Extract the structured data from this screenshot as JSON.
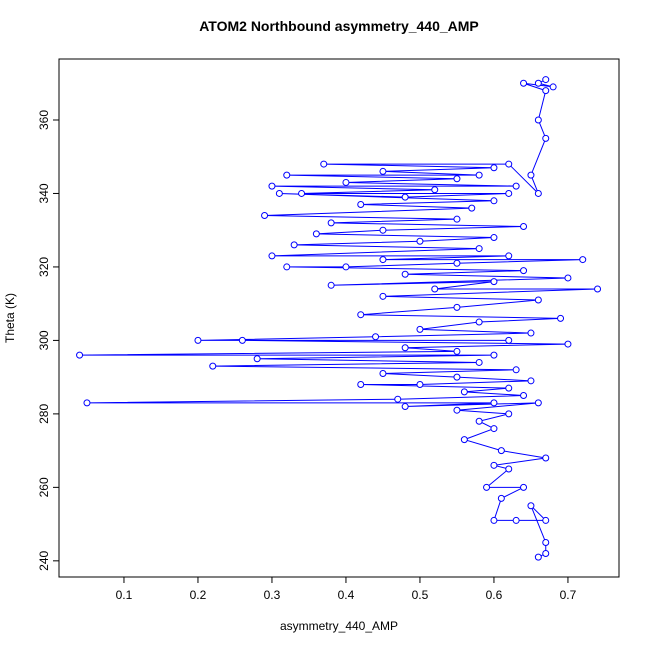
{
  "chart_data": {
    "type": "line",
    "title": "ATOM2 Northbound asymmetry_440_AMP",
    "xlabel": "asymmetry_440_AMP",
    "ylabel": "Theta (K)",
    "color": "#0000ff",
    "markers": true,
    "grid": false,
    "xlim": [
      0.0122,
      0.769
    ],
    "ylim": [
      235.6,
      376.6
    ],
    "xticks": [
      0.1,
      0.2,
      0.3,
      0.4,
      0.5,
      0.6,
      0.7
    ],
    "yticks": [
      240,
      260,
      280,
      300,
      320,
      340,
      360
    ],
    "x": [
      0.67,
      0.66,
      0.68,
      0.64,
      0.67,
      0.66,
      0.67,
      0.65,
      0.66,
      0.62,
      0.37,
      0.6,
      0.45,
      0.58,
      0.32,
      0.55,
      0.4,
      0.63,
      0.3,
      0.52,
      0.34,
      0.62,
      0.48,
      0.31,
      0.6,
      0.42,
      0.57,
      0.29,
      0.55,
      0.38,
      0.64,
      0.45,
      0.36,
      0.6,
      0.5,
      0.33,
      0.58,
      0.3,
      0.62,
      0.45,
      0.72,
      0.55,
      0.4,
      0.32,
      0.64,
      0.48,
      0.7,
      0.38,
      0.6,
      0.52,
      0.74,
      0.45,
      0.66,
      0.55,
      0.42,
      0.69,
      0.58,
      0.5,
      0.65,
      0.44,
      0.2,
      0.62,
      0.26,
      0.7,
      0.48,
      0.55,
      0.04,
      0.6,
      0.28,
      0.58,
      0.22,
      0.63,
      0.45,
      0.55,
      0.65,
      0.5,
      0.42,
      0.62,
      0.56,
      0.64,
      0.47,
      0.05,
      0.6,
      0.48,
      0.66,
      0.55,
      0.62,
      0.58,
      0.6,
      0.56,
      0.61,
      0.67,
      0.6,
      0.62,
      0.59,
      0.64,
      0.61,
      0.6,
      0.63,
      0.67,
      0.65,
      0.67,
      0.67,
      0.66
    ],
    "values": [
      371,
      370,
      369,
      370,
      368,
      360,
      355,
      345,
      340,
      348,
      348,
      347,
      346,
      345,
      345,
      344,
      343,
      342,
      342,
      341,
      340,
      340,
      339,
      340,
      338,
      337,
      336,
      334,
      333,
      332,
      331,
      330,
      329,
      328,
      327,
      326,
      325,
      323,
      323,
      322,
      322,
      321,
      320,
      320,
      319,
      318,
      317,
      315,
      316,
      314,
      314,
      312,
      311,
      309,
      307,
      306,
      305,
      303,
      302,
      301,
      300,
      300,
      300,
      299,
      298,
      297,
      296,
      296,
      295,
      294,
      293,
      292,
      291,
      290,
      289,
      288,
      288,
      287,
      286,
      285,
      284,
      283,
      283,
      282,
      283,
      281,
      280,
      278,
      276,
      273,
      270,
      268,
      266,
      265,
      260,
      260,
      257,
      251,
      251,
      251,
      255,
      245,
      242,
      241
    ]
  }
}
